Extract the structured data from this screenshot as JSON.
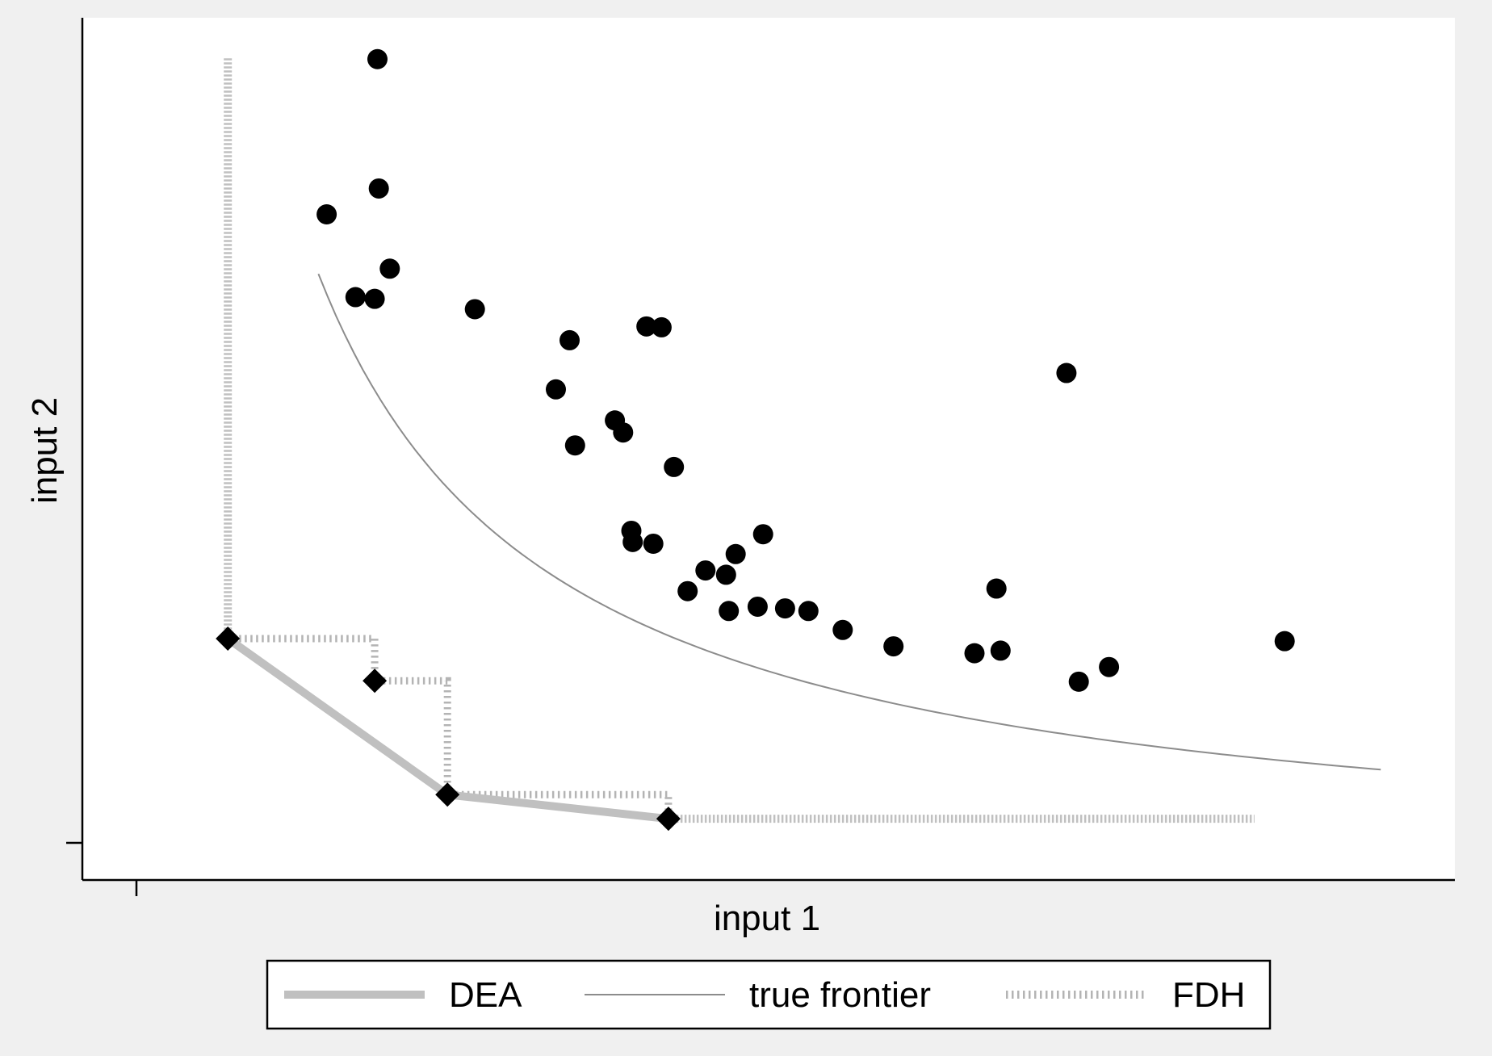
{
  "chart_data": {
    "type": "scatter",
    "title": "",
    "xlabel": "input 1",
    "ylabel": "input 2",
    "x_tick_labels": [],
    "y_tick_labels": [],
    "xlim": [
      0,
      100
    ],
    "ylim": [
      0,
      100
    ],
    "grid": false,
    "legend": {
      "position": "bottom",
      "entries": [
        "DEA",
        "true frontier",
        "FDH"
      ]
    },
    "colors": {
      "background": "#f0f0f0",
      "plot_background": "#ffffff",
      "points": "#000000",
      "dea": "#c0c0c0",
      "true_frontier": "#8c8c8c",
      "fdh": "#b4b4b4"
    },
    "series": [
      {
        "name": "",
        "kind": "observations",
        "points": [
          [
            21.5,
            95.2
          ],
          [
            21.6,
            80.2
          ],
          [
            17.8,
            77.2
          ],
          [
            22.4,
            70.9
          ],
          [
            19.9,
            67.6
          ],
          [
            21.3,
            67.4
          ],
          [
            28.6,
            66.2
          ],
          [
            35.5,
            62.6
          ],
          [
            34.5,
            56.9
          ],
          [
            41.1,
            64.2
          ],
          [
            42.2,
            64.1
          ],
          [
            38.8,
            53.3
          ],
          [
            35.9,
            50.4
          ],
          [
            39.4,
            51.9
          ],
          [
            43.1,
            47.9
          ],
          [
            40.0,
            40.5
          ],
          [
            40.1,
            39.2
          ],
          [
            41.6,
            39.0
          ],
          [
            49.6,
            40.1
          ],
          [
            47.6,
            37.8
          ],
          [
            45.4,
            35.9
          ],
          [
            46.9,
            35.4
          ],
          [
            44.1,
            33.5
          ],
          [
            49.2,
            31.7
          ],
          [
            47.1,
            31.2
          ],
          [
            51.2,
            31.5
          ],
          [
            52.9,
            31.2
          ],
          [
            55.4,
            29.0
          ],
          [
            59.1,
            27.1
          ],
          [
            65.0,
            26.3
          ],
          [
            66.6,
            33.8
          ],
          [
            66.9,
            26.6
          ],
          [
            71.7,
            58.8
          ],
          [
            72.6,
            23.0
          ],
          [
            74.8,
            24.7
          ],
          [
            87.6,
            27.7
          ]
        ]
      },
      {
        "name": "",
        "kind": "efficient-units",
        "points": [
          [
            10.6,
            28.0
          ],
          [
            21.3,
            23.1
          ],
          [
            26.6,
            9.9
          ],
          [
            42.7,
            7.1
          ]
        ]
      },
      {
        "name": "DEA",
        "kind": "frontier",
        "points": [
          [
            10.6,
            95.3
          ],
          [
            10.6,
            28.0
          ],
          [
            26.6,
            9.9
          ],
          [
            42.7,
            7.1
          ],
          [
            85.4,
            7.1
          ]
        ]
      },
      {
        "name": "true frontier",
        "kind": "curve",
        "x_range": [
          17.2,
          94.6
        ],
        "y_range": [
          70.3,
          12.8
        ]
      },
      {
        "name": "FDH",
        "kind": "staircase",
        "points": [
          [
            10.6,
            28.0
          ],
          [
            21.3,
            28.0
          ],
          [
            21.3,
            23.1
          ],
          [
            26.6,
            23.1
          ],
          [
            26.6,
            9.9
          ],
          [
            42.7,
            9.9
          ],
          [
            42.7,
            7.1
          ]
        ]
      }
    ]
  }
}
